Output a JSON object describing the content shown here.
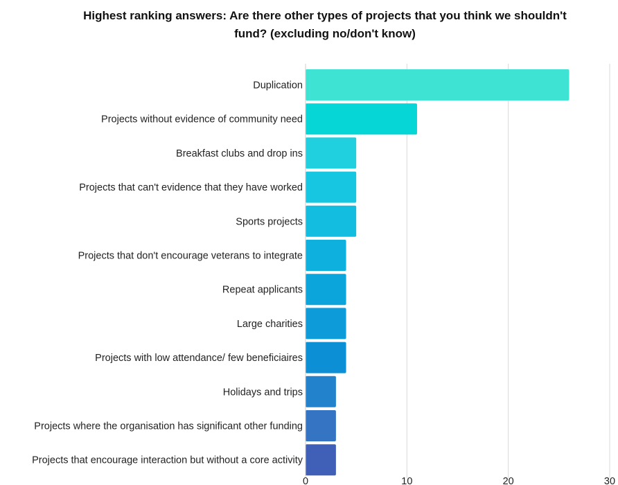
{
  "chart_data": {
    "type": "bar",
    "orientation": "horizontal",
    "title": "Highest ranking answers: Are there other types of projects that you think we shouldn't fund? (excluding no/don't know)",
    "xlabel": "",
    "ylabel": "",
    "categories": [
      "Duplication",
      "Projects without evidence of community need",
      "Breakfast clubs and drop ins",
      "Projects that can't evidence that they have worked",
      "Sports projects",
      "Projects that don't encourage veterans to integrate",
      "Repeat applicants",
      "Large charities",
      "Projects with low attendance/ few beneficiaires",
      "Holidays and trips",
      "Projects where the organisation has significant other funding",
      "Projects that encourage interaction but without a core activity"
    ],
    "values": [
      26,
      11,
      5,
      5,
      5,
      4,
      4,
      4,
      4,
      3,
      3,
      3
    ],
    "bar_colors": [
      "#3ee3d4",
      "#06d6d6",
      "#20d0df",
      "#17c6e0",
      "#12bddf",
      "#0eb0de",
      "#0ba5dc",
      "#0d9bd9",
      "#0c8fd4",
      "#2382cc",
      "#3474c3",
      "#4060b7"
    ],
    "xlim": [
      0,
      30
    ],
    "xticks": [
      0,
      10,
      20,
      30
    ],
    "grid": true,
    "legend": "none"
  }
}
